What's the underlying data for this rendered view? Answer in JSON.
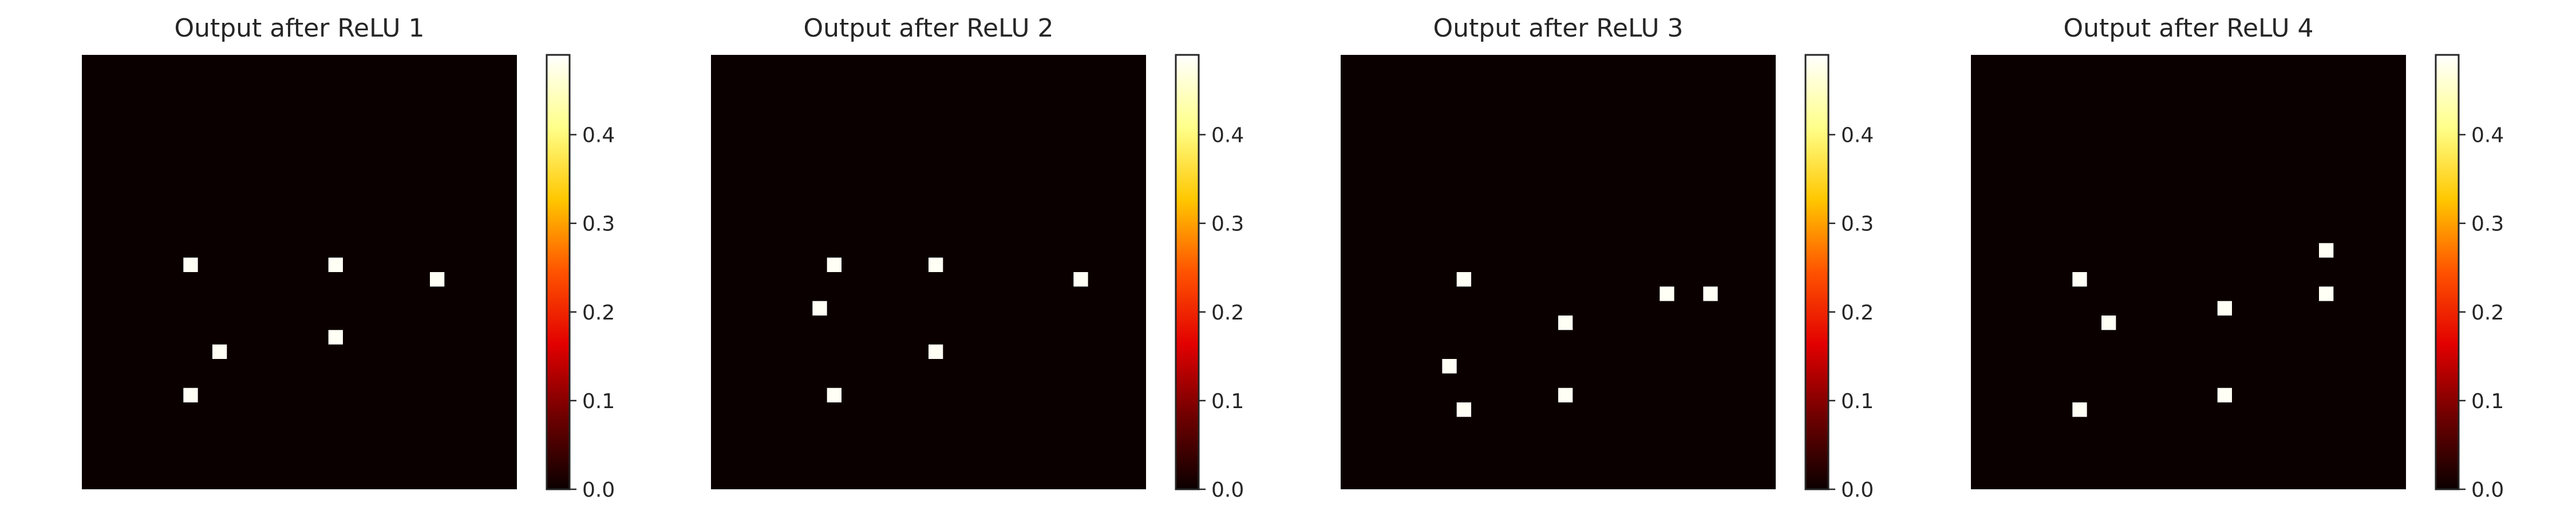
{
  "figure": {
    "description_colormap": "hot"
  },
  "colors": {
    "background_pixel": "#0b0000",
    "active_pixel": "#fffff5",
    "frame": "#262626",
    "colormap_stops": [
      "#0b0000",
      "#6e0000",
      "#e20000",
      "#ff5300",
      "#ffc700",
      "#ffff8a",
      "#ffffff"
    ]
  },
  "chart_data": [
    {
      "type": "heatmap",
      "title": "Output after ReLU 1",
      "grid_size": [
        30,
        30
      ],
      "active_cells": [
        [
          7,
          14
        ],
        [
          17,
          14
        ],
        [
          24,
          15
        ],
        [
          9,
          20
        ],
        [
          17,
          19
        ],
        [
          7,
          23
        ]
      ],
      "active_value": 0.49,
      "vmin": 0.0,
      "vmax": 0.49,
      "colorbar_ticks": [
        "0.0",
        "0.1",
        "0.2",
        "0.3",
        "0.4"
      ]
    },
    {
      "type": "heatmap",
      "title": "Output after ReLU 2",
      "grid_size": [
        30,
        30
      ],
      "active_cells": [
        [
          8,
          14
        ],
        [
          15,
          14
        ],
        [
          25,
          15
        ],
        [
          7,
          17
        ],
        [
          15,
          20
        ],
        [
          8,
          23
        ]
      ],
      "active_value": 0.49,
      "vmin": 0.0,
      "vmax": 0.49,
      "colorbar_ticks": [
        "0.0",
        "0.1",
        "0.2",
        "0.3",
        "0.4"
      ]
    },
    {
      "type": "heatmap",
      "title": "Output after ReLU 3",
      "grid_size": [
        30,
        30
      ],
      "active_cells": [
        [
          8,
          15
        ],
        [
          15,
          18
        ],
        [
          22,
          16
        ],
        [
          25,
          16
        ],
        [
          7,
          21
        ],
        [
          15,
          23
        ],
        [
          8,
          24
        ]
      ],
      "active_value": 0.49,
      "vmin": 0.0,
      "vmax": 0.49,
      "colorbar_ticks": [
        "0.0",
        "0.1",
        "0.2",
        "0.3",
        "0.4"
      ]
    },
    {
      "type": "heatmap",
      "title": "Output after ReLU 4",
      "grid_size": [
        30,
        30
      ],
      "active_cells": [
        [
          24,
          13
        ],
        [
          7,
          15
        ],
        [
          24,
          16
        ],
        [
          17,
          17
        ],
        [
          9,
          18
        ],
        [
          17,
          23
        ],
        [
          7,
          24
        ]
      ],
      "active_value": 0.49,
      "vmin": 0.0,
      "vmax": 0.49,
      "colorbar_ticks": [
        "0.0",
        "0.1",
        "0.2",
        "0.3",
        "0.4"
      ]
    }
  ]
}
